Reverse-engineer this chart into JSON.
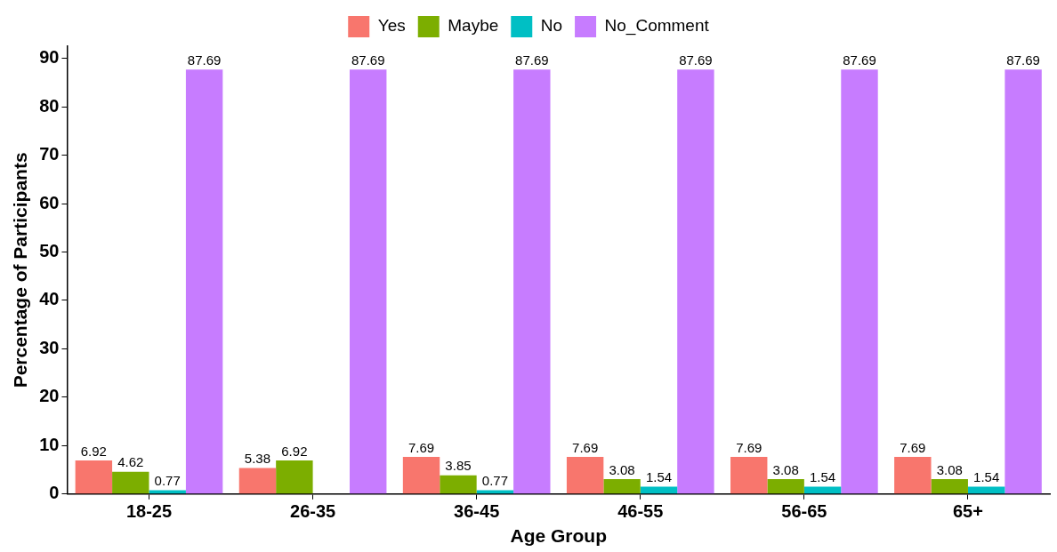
{
  "chart_data": {
    "type": "bar",
    "xlabel": "Age Group",
    "ylabel": "Percentage of Participants",
    "categories": [
      "18-25",
      "26-35",
      "36-45",
      "46-55",
      "56-65",
      "65+"
    ],
    "series": [
      {
        "name": "Yes",
        "color": "#f8766d",
        "values": [
          6.92,
          5.38,
          7.69,
          7.69,
          7.69,
          7.69
        ]
      },
      {
        "name": "Maybe",
        "color": "#7cae00",
        "values": [
          4.62,
          6.92,
          3.85,
          3.08,
          3.08,
          3.08
        ]
      },
      {
        "name": "No",
        "color": "#00bfc4",
        "values": [
          0.77,
          null,
          0.77,
          1.54,
          1.54,
          1.54
        ]
      },
      {
        "name": "No_Comment",
        "color": "#c77cff",
        "values": [
          87.69,
          87.69,
          87.69,
          87.69,
          87.69,
          87.69
        ]
      }
    ],
    "ylim": [
      0,
      92.5
    ],
    "yticks": [
      0,
      10,
      20,
      30,
      40,
      50,
      60,
      70,
      80,
      90
    ],
    "legend": "top",
    "data_labels": true
  }
}
